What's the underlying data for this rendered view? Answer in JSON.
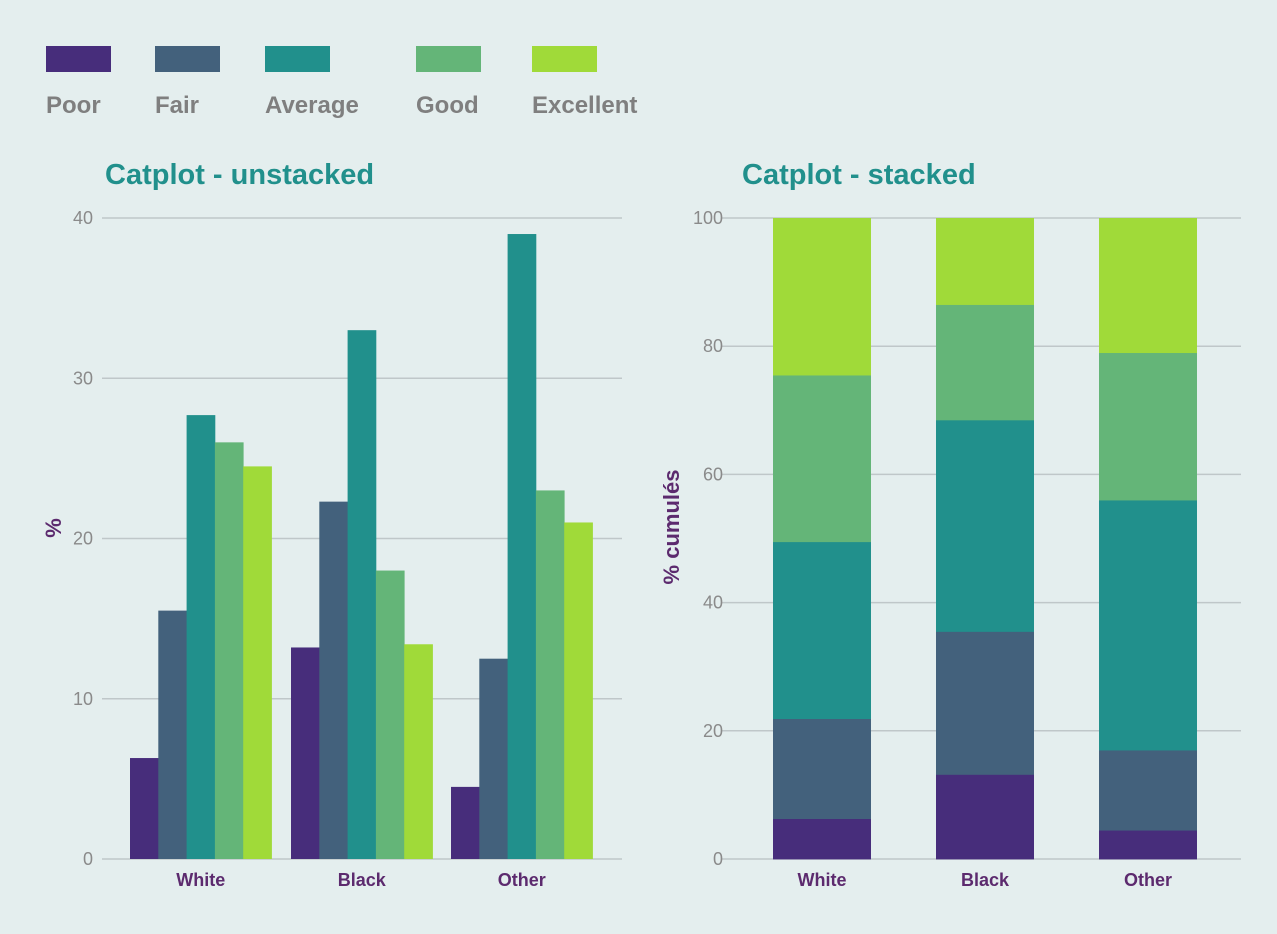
{
  "legend": {
    "items": [
      {
        "label": "Poor",
        "color": "#472d7b"
      },
      {
        "label": "Fair",
        "color": "#43617c"
      },
      {
        "label": "Average",
        "color": "#21908c"
      },
      {
        "label": "Good",
        "color": "#64b578"
      },
      {
        "label": "Excellent",
        "color": "#a0da39"
      }
    ]
  },
  "chart_data": [
    {
      "type": "bar",
      "title": "Catplot - unstacked",
      "xlabel": "",
      "ylabel": "%",
      "ylim": [
        0,
        40
      ],
      "yticks": [
        "0",
        "10",
        "20",
        "30",
        "40"
      ],
      "grid": true,
      "legend_position": "top-left",
      "categories": [
        "White",
        "Black",
        "Other"
      ],
      "series": [
        {
          "name": "Poor",
          "color": "#472d7b",
          "values": [
            6.3,
            13.2,
            4.5
          ]
        },
        {
          "name": "Fair",
          "color": "#43617c",
          "values": [
            15.5,
            22.3,
            12.5
          ]
        },
        {
          "name": "Average",
          "color": "#21908c",
          "values": [
            27.7,
            33.0,
            39.0
          ]
        },
        {
          "name": "Good",
          "color": "#64b578",
          "values": [
            26.0,
            18.0,
            23.0
          ]
        },
        {
          "name": "Excellent",
          "color": "#a0da39",
          "values": [
            24.5,
            13.4,
            21.0
          ]
        }
      ]
    },
    {
      "type": "bar",
      "stacked": true,
      "title": "Catplot - stacked",
      "xlabel": "",
      "ylabel": "% cumulés",
      "ylim": [
        0,
        100
      ],
      "yticks": [
        "0",
        "20",
        "40",
        "60",
        "80",
        "100"
      ],
      "grid": true,
      "categories": [
        "White",
        "Black",
        "Other"
      ],
      "series": [
        {
          "name": "Poor",
          "color": "#472d7b",
          "values": [
            6.3,
            13.2,
            4.5
          ]
        },
        {
          "name": "Fair",
          "color": "#43617c",
          "values": [
            15.6,
            22.3,
            12.5
          ]
        },
        {
          "name": "Average",
          "color": "#21908c",
          "values": [
            27.6,
            33.0,
            39.0
          ]
        },
        {
          "name": "Good",
          "color": "#64b578",
          "values": [
            26.0,
            18.0,
            23.0
          ]
        },
        {
          "name": "Excellent",
          "color": "#a0da39",
          "values": [
            24.5,
            13.5,
            21.0
          ]
        }
      ]
    }
  ]
}
